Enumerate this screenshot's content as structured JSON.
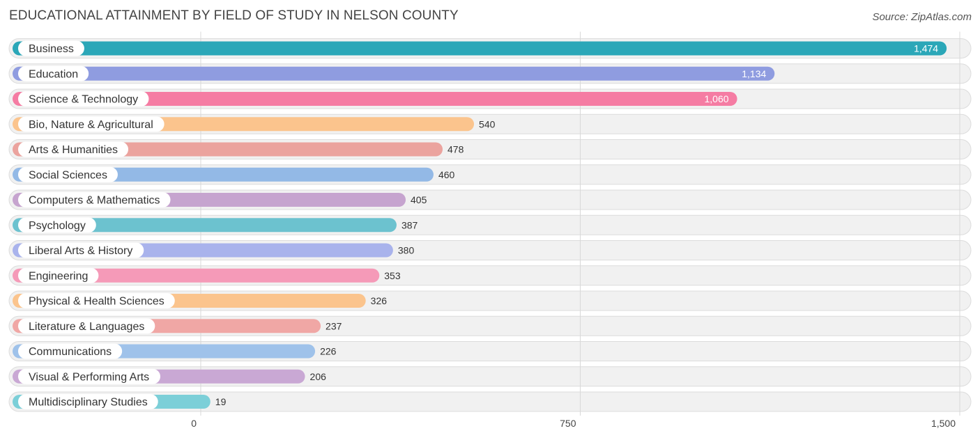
{
  "chart_data": {
    "type": "bar",
    "orientation": "horizontal",
    "title": "EDUCATIONAL ATTAINMENT BY FIELD OF STUDY IN NELSON COUNTY",
    "source": "Source: ZipAtlas.com",
    "xlabel": "",
    "ylabel": "",
    "xlim": [
      0,
      1500
    ],
    "ticks": [
      0,
      750,
      1500
    ],
    "tick_labels": [
      "0",
      "750",
      "1,500"
    ],
    "grid": true,
    "categories": [
      "Business",
      "Education",
      "Science & Technology",
      "Bio, Nature & Agricultural",
      "Arts & Humanities",
      "Social Sciences",
      "Computers & Mathematics",
      "Psychology",
      "Liberal Arts & History",
      "Engineering",
      "Physical & Health Sciences",
      "Literature & Languages",
      "Communications",
      "Visual & Performing Arts",
      "Multidisciplinary Studies"
    ],
    "values": [
      1474,
      1134,
      1060,
      540,
      478,
      460,
      405,
      387,
      380,
      353,
      326,
      237,
      226,
      206,
      19
    ],
    "value_labels": [
      "1,474",
      "1,134",
      "1,060",
      "540",
      "478",
      "460",
      "405",
      "387",
      "380",
      "353",
      "326",
      "237",
      "226",
      "206",
      "19"
    ],
    "colors": [
      "#2ba7b8",
      "#8f9ce0",
      "#f57ca3",
      "#fbc48d",
      "#eba39e",
      "#93b9e6",
      "#c6a4cf",
      "#6cc2cf",
      "#a9b3ec",
      "#f59ab8",
      "#fbc48d",
      "#f0a7a5",
      "#9fc2ea",
      "#c9a8d4",
      "#7ccfd8"
    ]
  }
}
